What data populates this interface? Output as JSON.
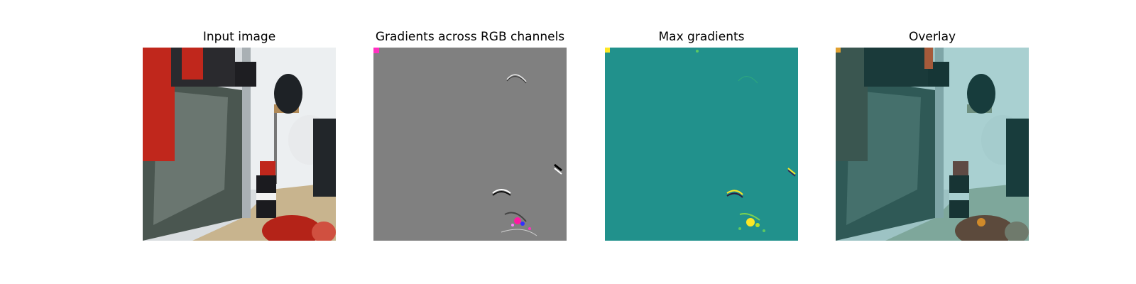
{
  "figure": {
    "panels": [
      {
        "title": "Input image"
      },
      {
        "title": "Gradients across RGB channels"
      },
      {
        "title": "Max gradients"
      },
      {
        "title": "Overlay"
      }
    ]
  },
  "colors": {
    "background": "#ffffff",
    "gradient_neutral_gray": "#808080",
    "max_gradient_teal": "#21918c",
    "max_gradient_yellow": "#fde725",
    "robot_red": "#c0271c",
    "floor_beige": "#c8b48e",
    "overlay_teal_tint": "#2a8f8c"
  }
}
